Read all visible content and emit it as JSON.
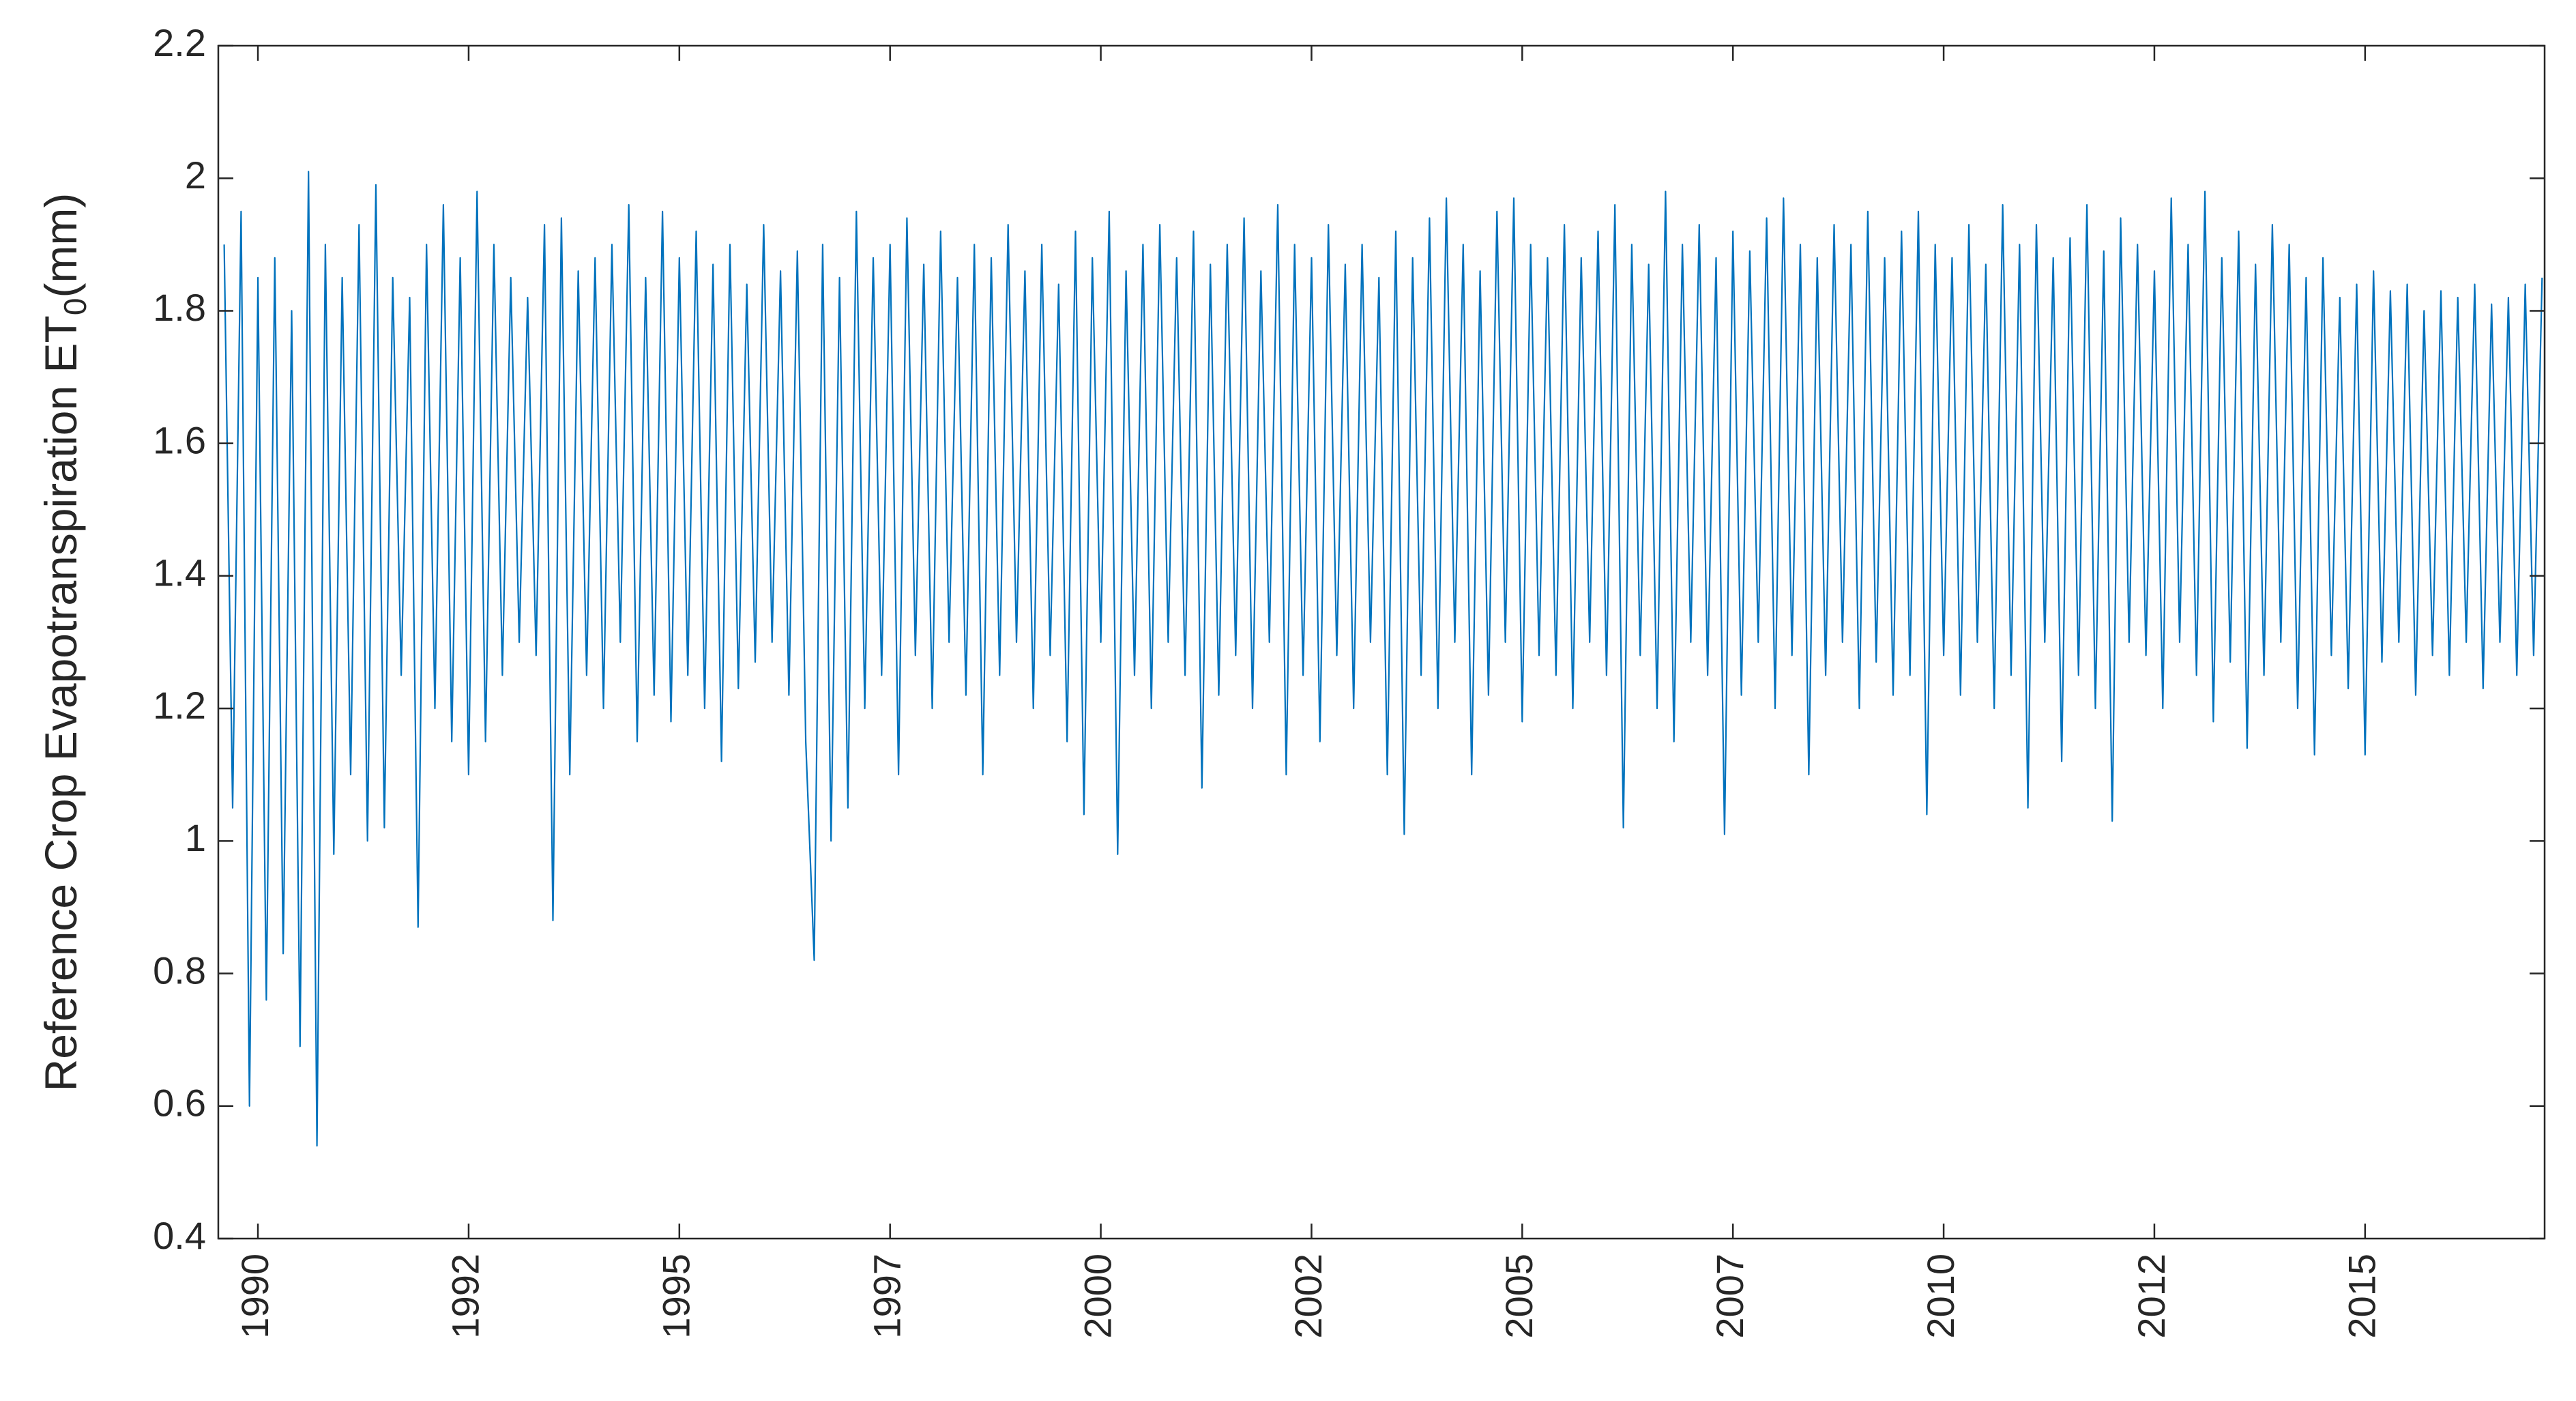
{
  "chart_data": {
    "type": "line",
    "ylabel": {
      "text": "Reference Crop Evapotranspiration ET",
      "subscript": "0",
      "suffix": "(mm)"
    },
    "color": "#0072bd",
    "xlim": [
      1989.53,
      2017.13
    ],
    "xticks": [
      {
        "value": 1990,
        "label": "1990"
      },
      {
        "value": 1992.5,
        "label": "1992"
      },
      {
        "value": 1995,
        "label": "1995"
      },
      {
        "value": 1997.5,
        "label": "1997"
      },
      {
        "value": 2000,
        "label": "2000"
      },
      {
        "value": 2002.5,
        "label": "2002"
      },
      {
        "value": 2005,
        "label": "2005"
      },
      {
        "value": 2007.5,
        "label": "2007"
      },
      {
        "value": 2010,
        "label": "2010"
      },
      {
        "value": 2012.5,
        "label": "2012"
      },
      {
        "value": 2015,
        "label": "2015"
      }
    ],
    "ylim": [
      0.4,
      2.2
    ],
    "yticks": [
      0.4,
      0.6,
      0.8,
      1,
      1.2,
      1.4,
      1.6,
      1.8,
      2,
      2.2
    ],
    "x": [
      1989.6,
      1989.7,
      1989.8,
      1989.9,
      1990.0,
      1990.1,
      1990.2,
      1990.3,
      1990.4,
      1990.5,
      1990.6,
      1990.7,
      1990.8,
      1990.9,
      1991.0,
      1991.1,
      1991.2,
      1991.3,
      1991.4,
      1991.5,
      1991.6,
      1991.7,
      1991.8,
      1991.9,
      1992.0,
      1992.1,
      1992.2,
      1992.3,
      1992.4,
      1992.5,
      1992.6,
      1992.7,
      1992.8,
      1992.9,
      1993.0,
      1993.1,
      1993.2,
      1993.3,
      1993.4,
      1993.5,
      1993.6,
      1993.7,
      1993.8,
      1993.9,
      1994.0,
      1994.1,
      1994.2,
      1994.3,
      1994.4,
      1994.5,
      1994.6,
      1994.7,
      1994.8,
      1994.9,
      1995.0,
      1995.1,
      1995.2,
      1995.3,
      1995.4,
      1995.5,
      1995.6,
      1995.7,
      1995.8,
      1995.9,
      1996.0,
      1996.1,
      1996.2,
      1996.3,
      1996.4,
      1996.5,
      1996.6,
      1996.7,
      1996.8,
      1996.9,
      1997.0,
      1997.1,
      1997.2,
      1997.3,
      1997.4,
      1997.5,
      1997.6,
      1997.7,
      1997.8,
      1997.9,
      1998.0,
      1998.1,
      1998.2,
      1998.3,
      1998.4,
      1998.5,
      1998.6,
      1998.7,
      1998.8,
      1998.9,
      1999.0,
      1999.1,
      1999.2,
      1999.3,
      1999.4,
      1999.5,
      1999.6,
      1999.7,
      1999.8,
      1999.9,
      2000.0,
      2000.1,
      2000.2,
      2000.3,
      2000.4,
      2000.5,
      2000.6,
      2000.7,
      2000.8,
      2000.9,
      2001.0,
      2001.1,
      2001.2,
      2001.3,
      2001.4,
      2001.5,
      2001.6,
      2001.7,
      2001.8,
      2001.9,
      2002.0,
      2002.1,
      2002.2,
      2002.3,
      2002.4,
      2002.5,
      2002.6,
      2002.7,
      2002.8,
      2002.9,
      2003.0,
      2003.1,
      2003.2,
      2003.3,
      2003.4,
      2003.5,
      2003.6,
      2003.7,
      2003.8,
      2003.9,
      2004.0,
      2004.1,
      2004.2,
      2004.3,
      2004.4,
      2004.5,
      2004.6,
      2004.7,
      2004.8,
      2004.9,
      2005.0,
      2005.1,
      2005.2,
      2005.3,
      2005.4,
      2005.5,
      2005.6,
      2005.7,
      2005.8,
      2005.9,
      2006.0,
      2006.1,
      2006.2,
      2006.3,
      2006.4,
      2006.5,
      2006.6,
      2006.7,
      2006.8,
      2006.9,
      2007.0,
      2007.1,
      2007.2,
      2007.3,
      2007.4,
      2007.5,
      2007.6,
      2007.7,
      2007.8,
      2007.9,
      2008.0,
      2008.1,
      2008.2,
      2008.3,
      2008.4,
      2008.5,
      2008.6,
      2008.7,
      2008.8,
      2008.9,
      2009.0,
      2009.1,
      2009.2,
      2009.3,
      2009.4,
      2009.5,
      2009.6,
      2009.7,
      2009.8,
      2009.9,
      2010.0,
      2010.1,
      2010.2,
      2010.3,
      2010.4,
      2010.5,
      2010.6,
      2010.7,
      2010.8,
      2010.9,
      2011.0,
      2011.1,
      2011.2,
      2011.3,
      2011.4,
      2011.5,
      2011.6,
      2011.7,
      2011.8,
      2011.9,
      2012.0,
      2012.1,
      2012.2,
      2012.3,
      2012.4,
      2012.5,
      2012.6,
      2012.7,
      2012.8,
      2012.9,
      2013.0,
      2013.1,
      2013.2,
      2013.3,
      2013.4,
      2013.5,
      2013.6,
      2013.7,
      2013.8,
      2013.9,
      2014.0,
      2014.1,
      2014.2,
      2014.3,
      2014.4,
      2014.5,
      2014.6,
      2014.7,
      2014.8,
      2014.9,
      2015.0,
      2015.1,
      2015.2,
      2015.3,
      2015.4,
      2015.5,
      2015.6,
      2015.7,
      2015.8,
      2015.9,
      2016.0,
      2016.1,
      2016.2,
      2016.3,
      2016.4,
      2016.5,
      2016.6,
      2016.7,
      2016.8,
      2016.9,
      2017.0,
      2017.1
    ],
    "values": [
      1.9,
      1.05,
      1.95,
      0.6,
      1.85,
      0.76,
      1.88,
      0.83,
      1.8,
      0.69,
      2.01,
      0.54,
      1.9,
      0.98,
      1.85,
      1.1,
      1.93,
      1.0,
      1.99,
      1.02,
      1.85,
      1.25,
      1.82,
      0.87,
      1.9,
      1.2,
      1.96,
      1.15,
      1.88,
      1.1,
      1.98,
      1.15,
      1.9,
      1.25,
      1.85,
      1.3,
      1.82,
      1.28,
      1.93,
      0.88,
      1.94,
      1.1,
      1.86,
      1.25,
      1.88,
      1.2,
      1.9,
      1.3,
      1.96,
      1.15,
      1.85,
      1.22,
      1.95,
      1.18,
      1.88,
      1.25,
      1.92,
      1.2,
      1.87,
      1.12,
      1.9,
      1.23,
      1.84,
      1.27,
      1.93,
      1.3,
      1.86,
      1.22,
      1.89,
      1.15,
      0.82,
      1.9,
      1.0,
      1.85,
      1.05,
      1.95,
      1.2,
      1.88,
      1.25,
      1.9,
      1.1,
      1.94,
      1.28,
      1.87,
      1.2,
      1.92,
      1.3,
      1.85,
      1.22,
      1.9,
      1.1,
      1.88,
      1.25,
      1.93,
      1.3,
      1.86,
      1.2,
      1.9,
      1.28,
      1.84,
      1.15,
      1.92,
      1.04,
      1.88,
      1.3,
      1.95,
      0.98,
      1.86,
      1.25,
      1.9,
      1.2,
      1.93,
      1.3,
      1.88,
      1.25,
      1.92,
      1.08,
      1.87,
      1.22,
      1.9,
      1.28,
      1.94,
      1.2,
      1.86,
      1.3,
      1.96,
      1.1,
      1.9,
      1.25,
      1.88,
      1.15,
      1.93,
      1.28,
      1.87,
      1.2,
      1.9,
      1.3,
      1.85,
      1.1,
      1.92,
      1.01,
      1.88,
      1.25,
      1.94,
      1.2,
      1.97,
      1.3,
      1.9,
      1.1,
      1.86,
      1.22,
      1.95,
      1.3,
      1.97,
      1.18,
      1.9,
      1.28,
      1.88,
      1.25,
      1.93,
      1.2,
      1.88,
      1.3,
      1.92,
      1.25,
      1.96,
      1.02,
      1.9,
      1.28,
      1.87,
      1.2,
      1.98,
      1.15,
      1.9,
      1.3,
      1.93,
      1.25,
      1.88,
      1.01,
      1.92,
      1.22,
      1.89,
      1.3,
      1.94,
      1.2,
      1.97,
      1.28,
      1.9,
      1.1,
      1.88,
      1.25,
      1.93,
      1.3,
      1.9,
      1.2,
      1.95,
      1.27,
      1.88,
      1.22,
      1.92,
      1.25,
      1.95,
      1.04,
      1.9,
      1.28,
      1.88,
      1.22,
      1.93,
      1.3,
      1.87,
      1.2,
      1.96,
      1.25,
      1.9,
      1.05,
      1.93,
      1.3,
      1.88,
      1.12,
      1.91,
      1.25,
      1.96,
      1.2,
      1.89,
      1.03,
      1.94,
      1.3,
      1.9,
      1.28,
      1.86,
      1.2,
      1.97,
      1.3,
      1.9,
      1.25,
      1.98,
      1.18,
      1.88,
      1.27,
      1.92,
      1.14,
      1.87,
      1.25,
      1.93,
      1.3,
      1.9,
      1.2,
      1.85,
      1.13,
      1.88,
      1.28,
      1.82,
      1.23,
      1.84,
      1.13,
      1.86,
      1.27,
      1.83,
      1.3,
      1.84,
      1.22,
      1.8,
      1.28,
      1.83,
      1.25,
      1.82,
      1.3,
      1.84,
      1.23,
      1.81,
      1.3,
      1.82,
      1.25,
      1.84,
      1.28,
      1.85
    ]
  }
}
